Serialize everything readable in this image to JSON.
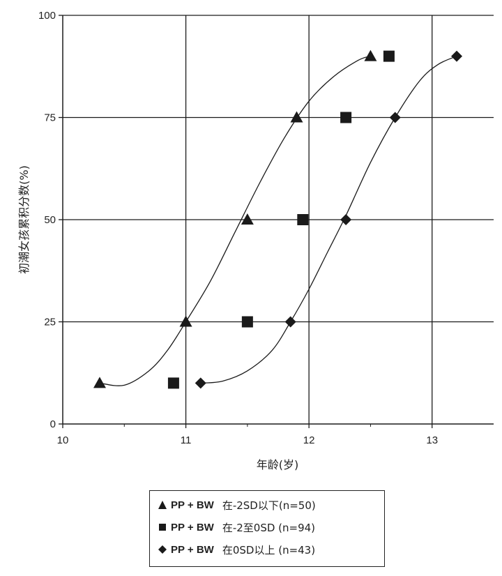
{
  "chart_data": {
    "type": "scatter",
    "title": "",
    "xlabel": "年龄(岁)",
    "ylabel": "初潮女孩累积分数(%)",
    "xlim": [
      10,
      13.5
    ],
    "ylim": [
      0,
      100
    ],
    "xticks": [
      "10",
      "11",
      "12",
      "13"
    ],
    "yticks": [
      "0",
      "25",
      "50",
      "75",
      "100"
    ],
    "grid": true,
    "legend_position": "bottom",
    "series": [
      {
        "name": "PP + BW",
        "label": "在-2SD以下(n=50)",
        "marker": "triangle",
        "x": [
          10.3,
          11.0,
          11.5,
          11.9,
          12.5
        ],
        "y": [
          10,
          25,
          50,
          75,
          90
        ],
        "curve_x": [
          10.3,
          10.5,
          10.7,
          10.85,
          11.0,
          11.2,
          11.4,
          11.6,
          11.8,
          12.0,
          12.2,
          12.4,
          12.5
        ],
        "curve_y": [
          10,
          9.5,
          13,
          18,
          25,
          35,
          47,
          59,
          70,
          79,
          85,
          89,
          90
        ]
      },
      {
        "name": "PP + BW",
        "label": "在-2至0SD (n=94)",
        "marker": "square",
        "x": [
          10.9,
          11.5,
          11.95,
          12.3,
          12.65
        ],
        "y": [
          10,
          25,
          50,
          75,
          90
        ]
      },
      {
        "name": "PP + BW",
        "label": "在0SD以上 (n=43)",
        "marker": "diamond",
        "x": [
          11.12,
          11.85,
          12.3,
          12.7,
          13.2
        ],
        "y": [
          10,
          25,
          50,
          75,
          90
        ],
        "curve_x": [
          11.12,
          11.3,
          11.5,
          11.7,
          11.85,
          12.0,
          12.15,
          12.3,
          12.5,
          12.7,
          12.9,
          13.05,
          13.2
        ],
        "curve_y": [
          10,
          10.5,
          13,
          18,
          25,
          33,
          42,
          51,
          64,
          75,
          84,
          88,
          90
        ]
      }
    ]
  },
  "colors": {
    "ink": "#1a1a1a",
    "grid": "#1a1a1a",
    "background": "#ffffff"
  }
}
